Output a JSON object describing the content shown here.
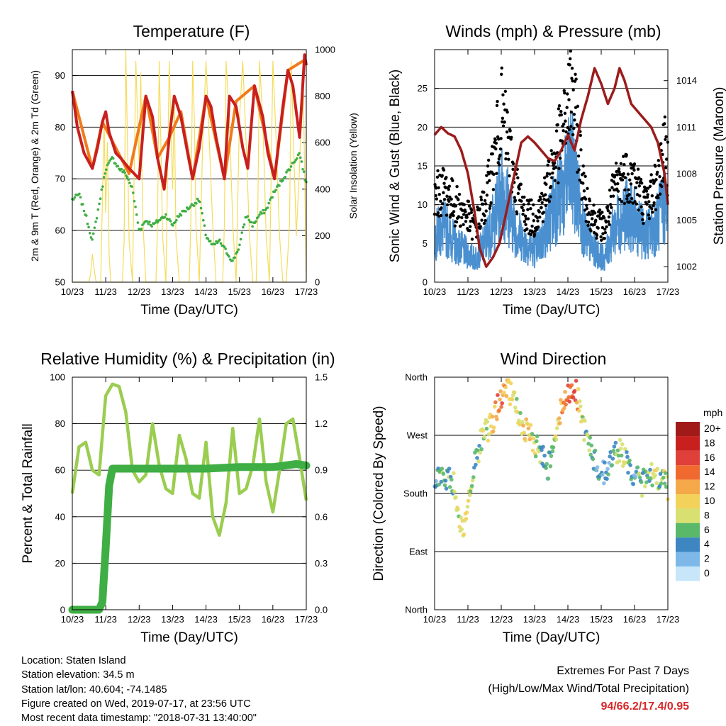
{
  "chart_data": [
    {
      "type": "line",
      "title": "Temperature (F)",
      "xlabel": "Time (Day/UTC)",
      "ylabel": "2m & 9m T (Red, Orange) & 2m Td (Green)",
      "y2label": "Solar Insolation (Yellow)",
      "x_ticks": [
        "10/23",
        "11/23",
        "12/23",
        "13/23",
        "14/23",
        "15/23",
        "16/23",
        "17/23"
      ],
      "ylim": [
        50,
        95
      ],
      "y_ticks": [
        50,
        60,
        70,
        80,
        90
      ],
      "y2lim": [
        0,
        1000
      ],
      "y2_ticks": [
        0,
        200,
        400,
        600,
        800,
        1000
      ],
      "grid": "horizontal",
      "colors": {
        "t2m": "#c8201e",
        "t9m": "#f07a1a",
        "td": "#3fae44",
        "solar": "#f5dc5a"
      },
      "series": [
        {
          "name": "2m T",
          "x": [
            0,
            0.15,
            0.35,
            0.6,
            0.75,
            0.9,
            1.0,
            1.1,
            1.3,
            1.45,
            1.7,
            1.85,
            2.0,
            2.2,
            2.4,
            2.55,
            2.75,
            2.9,
            3.05,
            3.25,
            3.45,
            3.6,
            3.8,
            4.0,
            4.15,
            4.3,
            4.55,
            4.7,
            4.9,
            5.1,
            5.25,
            5.45,
            5.7,
            5.85,
            6.05,
            6.3,
            6.45,
            6.6,
            6.8,
            6.95,
            7.0
          ],
          "values": [
            87,
            80,
            75,
            72,
            76,
            81,
            83,
            79,
            75,
            74,
            72,
            71,
            70,
            86,
            82,
            74,
            68,
            78,
            86,
            82,
            75,
            70,
            76,
            86,
            84,
            78,
            70,
            86,
            84,
            76,
            72,
            88,
            82,
            75,
            70,
            84,
            91,
            88,
            78,
            94,
            92
          ]
        },
        {
          "name": "9m T",
          "x": [
            0,
            0.6,
            0.9,
            1.7,
            2.2,
            2.55,
            2.9,
            3.25,
            3.6,
            4.0,
            4.55,
            4.9,
            5.45,
            6.05,
            6.45,
            6.95,
            7.0
          ],
          "values": [
            87,
            72,
            81,
            71,
            86,
            74,
            78,
            83,
            70,
            86,
            70,
            85,
            88,
            70,
            91,
            93,
            92
          ]
        },
        {
          "name": "2m Td",
          "x": [
            0,
            0.2,
            0.4,
            0.6,
            0.8,
            1.0,
            1.2,
            1.4,
            1.6,
            1.8,
            2.0,
            2.2,
            2.4,
            2.6,
            2.8,
            3.0,
            3.2,
            3.4,
            3.6,
            3.8,
            4.0,
            4.2,
            4.4,
            4.6,
            4.8,
            5.0,
            5.2,
            5.4,
            5.6,
            5.8,
            6.0,
            6.2,
            6.4,
            6.6,
            6.8,
            7.0
          ],
          "values": [
            66,
            67,
            63,
            58,
            65,
            72,
            74,
            72,
            71,
            68,
            60,
            62,
            61,
            62,
            63,
            61,
            63,
            64,
            65,
            66,
            59,
            57,
            58,
            56,
            54,
            57,
            63,
            61,
            63,
            64,
            67,
            69,
            71,
            73,
            75,
            69
          ]
        },
        {
          "name": "Solar Insolation",
          "axis": "y2",
          "x": [
            0,
            0.5,
            0.55,
            0.6,
            0.65,
            0.7,
            0.72,
            0.85,
            0.9,
            0.95,
            1.0,
            1.05,
            1.1,
            1.15,
            1.2,
            1.3,
            1.4,
            1.5,
            1.55,
            1.6,
            1.65,
            1.7,
            1.8,
            1.9,
            2.0,
            2.05,
            2.1,
            2.2,
            2.3,
            2.4,
            2.5,
            2.55,
            2.6,
            2.65,
            2.7,
            2.8,
            2.9,
            3.0,
            3.05,
            3.1,
            3.2,
            3.3,
            3.4,
            3.5,
            3.55,
            3.6,
            3.65,
            3.7,
            3.8,
            3.9,
            4.0,
            4.1,
            4.2,
            4.3,
            4.4,
            4.5,
            4.55,
            4.6,
            4.7,
            4.8,
            4.9,
            5.0,
            5.1,
            5.2,
            5.3,
            5.4,
            5.5,
            5.55,
            5.6,
            5.7,
            5.8,
            5.9,
            6.0,
            6.1,
            6.2,
            6.3,
            6.4,
            6.5,
            6.55,
            6.6,
            6.7,
            6.8,
            6.9,
            7.0
          ],
          "values": [
            0,
            0,
            40,
            120,
            60,
            10,
            0,
            0,
            350,
            700,
            300,
            600,
            120,
            0,
            0,
            0,
            0,
            0,
            180,
            1000,
            600,
            180,
            0,
            950,
            500,
            900,
            300,
            0,
            0,
            0,
            0,
            250,
            950,
            600,
            200,
            0,
            950,
            400,
            800,
            200,
            0,
            0,
            0,
            0,
            300,
            950,
            700,
            250,
            0,
            600,
            950,
            600,
            250,
            0,
            0,
            0,
            250,
            950,
            700,
            250,
            0,
            700,
            950,
            600,
            200,
            0,
            0,
            300,
            950,
            700,
            200,
            0,
            950,
            600,
            200,
            0,
            0,
            250,
            950,
            700,
            200,
            500,
            950,
            0
          ]
        }
      ]
    },
    {
      "type": "line",
      "title": "Winds (mph) & Pressure (mb)",
      "xlabel": "Time (Day/UTC)",
      "ylabel": "Sonic Wind & Gust (Blue, Black)",
      "y2label": "Station Pressure (Maroon)",
      "x_ticks": [
        "10/23",
        "11/23",
        "12/23",
        "13/23",
        "14/23",
        "15/23",
        "16/23",
        "17/23"
      ],
      "ylim": [
        0,
        30
      ],
      "y_ticks": [
        0,
        5,
        10,
        15,
        20,
        25
      ],
      "y2lim": [
        1001.0,
        1016.0
      ],
      "y2_ticks": [
        1002,
        1005,
        1008,
        1011,
        1014
      ],
      "grid": "horizontal",
      "colors": {
        "wind": "#4a90d0",
        "gust": "#000000",
        "pressure": "#9b1c1c"
      },
      "series": [
        {
          "name": "Sonic Wind",
          "x": [
            0,
            0.3,
            0.6,
            0.9,
            1.2,
            1.5,
            1.8,
            2.0,
            2.2,
            2.4,
            2.7,
            3.0,
            3.3,
            3.6,
            3.9,
            4.1,
            4.3,
            4.5,
            4.8,
            5.1,
            5.4,
            5.7,
            6.0,
            6.3,
            6.6,
            6.9,
            7.0
          ],
          "values": [
            6,
            7,
            5,
            4,
            3,
            5,
            8,
            12,
            10,
            7,
            5,
            4,
            6,
            10,
            12,
            15,
            11,
            6,
            4,
            3,
            7,
            9,
            8,
            6,
            7,
            10,
            9
          ]
        },
        {
          "name": "Gust",
          "x": [
            0,
            0.3,
            0.6,
            0.9,
            1.2,
            1.5,
            1.8,
            2.0,
            2.2,
            2.4,
            2.7,
            3.0,
            3.3,
            3.6,
            3.9,
            4.1,
            4.3,
            4.5,
            4.8,
            5.1,
            5.4,
            5.7,
            6.0,
            6.3,
            6.6,
            6.9,
            7.0
          ],
          "values": [
            11,
            12,
            10,
            9,
            7,
            10,
            16,
            22,
            18,
            13,
            9,
            8,
            11,
            16,
            20,
            25,
            19,
            11,
            8,
            7,
            12,
            14,
            13,
            10,
            12,
            17,
            15
          ]
        },
        {
          "name": "Station Pressure",
          "axis": "y2",
          "x": [
            0,
            0.2,
            0.4,
            0.6,
            0.8,
            1.0,
            1.2,
            1.35,
            1.55,
            1.75,
            1.95,
            2.2,
            2.45,
            2.6,
            2.8,
            3.0,
            3.2,
            3.4,
            3.6,
            3.8,
            4.0,
            4.2,
            4.4,
            4.6,
            4.8,
            5.0,
            5.2,
            5.4,
            5.55,
            5.7,
            5.9,
            6.1,
            6.3,
            6.5,
            6.7,
            6.9,
            7.0
          ],
          "values": [
            1010.5,
            1011.0,
            1010.6,
            1010.4,
            1009.5,
            1008.0,
            1005.5,
            1003.2,
            1002.0,
            1002.6,
            1003.5,
            1006.0,
            1008.5,
            1010.0,
            1010.4,
            1010.0,
            1009.5,
            1009.0,
            1008.8,
            1009.5,
            1010.5,
            1009.5,
            1011.5,
            1013.0,
            1014.8,
            1013.8,
            1012.5,
            1013.5,
            1014.8,
            1014.0,
            1012.5,
            1012.0,
            1011.5,
            1011.0,
            1010.0,
            1008.0,
            1006.0
          ]
        }
      ]
    },
    {
      "type": "line",
      "title": "Relative Humidity (%) & Precipitation (in)",
      "xlabel": "Time (Day/UTC)",
      "ylabel": "Percent & Total Rainfall",
      "x_ticks": [
        "10/23",
        "11/23",
        "12/23",
        "13/23",
        "14/23",
        "15/23",
        "16/23",
        "17/23"
      ],
      "ylim": [
        0,
        100
      ],
      "y_ticks": [
        0,
        20,
        40,
        60,
        80,
        100
      ],
      "y2lim": [
        0,
        1.5
      ],
      "y2_ticks": [
        "0.0",
        "0.3",
        "0.6",
        "0.9",
        "1.2",
        "1.5"
      ],
      "grid": "horizontal",
      "colors": {
        "rh": "#9acd50",
        "precip": "#3fae44"
      },
      "series": [
        {
          "name": "Relative Humidity",
          "x": [
            0,
            0.2,
            0.4,
            0.6,
            0.8,
            1.0,
            1.2,
            1.4,
            1.6,
            1.8,
            2.0,
            2.2,
            2.4,
            2.6,
            2.8,
            3.0,
            3.2,
            3.4,
            3.6,
            3.8,
            4.0,
            4.2,
            4.4,
            4.6,
            4.8,
            5.0,
            5.2,
            5.4,
            5.6,
            5.8,
            6.0,
            6.2,
            6.4,
            6.6,
            6.8,
            7.0
          ],
          "values": [
            50,
            70,
            72,
            60,
            58,
            92,
            97,
            96,
            85,
            60,
            55,
            58,
            80,
            62,
            52,
            50,
            75,
            65,
            50,
            48,
            72,
            40,
            32,
            46,
            78,
            50,
            52,
            62,
            82,
            55,
            42,
            60,
            80,
            82,
            65,
            47
          ]
        },
        {
          "name": "Total Rainfall",
          "axis": "y2",
          "x": [
            0,
            0.5,
            0.8,
            0.9,
            1.0,
            1.1,
            1.2,
            2.0,
            3.0,
            4.0,
            5.0,
            6.0,
            6.7,
            7.0
          ],
          "values": [
            0,
            0,
            0,
            0.05,
            0.4,
            0.8,
            0.91,
            0.91,
            0.91,
            0.91,
            0.92,
            0.92,
            0.94,
            0.93
          ]
        }
      ]
    },
    {
      "type": "scatter",
      "title": "Wind Direction",
      "xlabel": "Time (Day/UTC)",
      "ylabel": "Direction (Colored By Speed)",
      "x_ticks": [
        "10/23",
        "11/23",
        "12/23",
        "13/23",
        "14/23",
        "15/23",
        "16/23",
        "17/23"
      ],
      "y_ticks": [
        "North",
        "East",
        "South",
        "West",
        "North"
      ],
      "ylim": [
        0,
        360
      ],
      "grid": "horizontal",
      "legend": {
        "title": "mph",
        "labels": [
          "20+",
          "18",
          "16",
          "14",
          "12",
          "10",
          "8",
          "6",
          "4",
          "2",
          "0"
        ],
        "colors": [
          "#a11a1a",
          "#c8201e",
          "#e0403a",
          "#f06a30",
          "#f5a84a",
          "#f2d25a",
          "#d7e070",
          "#5ab86a",
          "#3d86c2",
          "#7db8e8",
          "#c8e6fa"
        ],
        "placement": "right"
      },
      "series": [
        {
          "name": "Direction",
          "x": [
            0,
            0.2,
            0.4,
            0.6,
            0.8,
            1.0,
            1.2,
            1.4,
            1.6,
            1.8,
            2.0,
            2.2,
            2.4,
            2.6,
            2.8,
            3.0,
            3.2,
            3.4,
            3.6,
            3.8,
            4.0,
            4.2,
            4.4,
            4.6,
            4.8,
            5.0,
            5.2,
            5.4,
            5.6,
            5.8,
            6.0,
            6.2,
            6.4,
            6.6,
            6.8,
            7.0
          ],
          "values": [
            210,
            205,
            200,
            195,
            120,
            150,
            230,
            260,
            280,
            300,
            330,
            340,
            320,
            290,
            270,
            260,
            240,
            220,
            270,
            310,
            330,
            350,
            300,
            260,
            230,
            210,
            220,
            240,
            250,
            220,
            210,
            190,
            220,
            200,
            210,
            190
          ],
          "speed": [
            4,
            6,
            5,
            7,
            10,
            9,
            6,
            7,
            9,
            12,
            14,
            10,
            8,
            9,
            10,
            8,
            5,
            4,
            8,
            12,
            14,
            16,
            8,
            6,
            5,
            4,
            3,
            5,
            8,
            6,
            4,
            6,
            5,
            7,
            6,
            10
          ]
        }
      ]
    }
  ],
  "footer": {
    "location": "Location: Staten Island",
    "elevation": "Station elevation: 34.5 m",
    "latlon": "Station lat/lon: 40.604; -74.1485",
    "created": "Figure created on Wed, 2019-07-17, at 23:56 UTC",
    "recent": "Most recent data timestamp: \"2018-07-31 13:40:00\"",
    "extremes_title": "Extremes For Past 7 Days",
    "extremes_subtitle": "(High/Low/Max Wind/Total Precipitation)",
    "extremes_values": "94/66.2/17.4/0.95"
  }
}
